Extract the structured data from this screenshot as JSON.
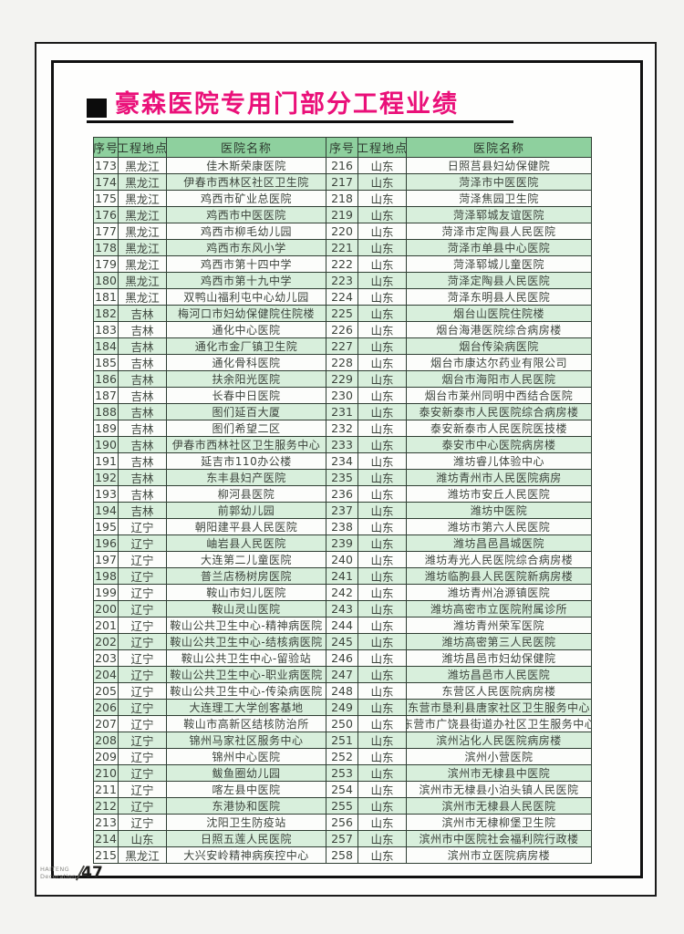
{
  "page": {
    "title": "豪森医院专用门部分工程业绩",
    "page_number": "47",
    "brand_line1": "HAITENG",
    "brand_line2": "Decoration"
  },
  "colors": {
    "title": "#ea1079",
    "header_bg": "#8ed09e",
    "band_green": "#d8efdc",
    "band_white": "#fcfdfb",
    "grid_line": "#2f3e33"
  },
  "table": {
    "headers": [
      "序号",
      "工程地点",
      "医院名称",
      "序号",
      "工程地点",
      "医院名称"
    ],
    "left_rows": [
      {
        "no": "173",
        "loc": "黑龙江",
        "name": "佳木斯荣康医院"
      },
      {
        "no": "174",
        "loc": "黑龙江",
        "name": "伊春市西林区社区卫生院"
      },
      {
        "no": "175",
        "loc": "黑龙江",
        "name": "鸡西市矿业总医院"
      },
      {
        "no": "176",
        "loc": "黑龙江",
        "name": "鸡西市中医医院"
      },
      {
        "no": "177",
        "loc": "黑龙江",
        "name": "鸡西市柳毛幼儿园"
      },
      {
        "no": "178",
        "loc": "黑龙江",
        "name": "鸡西市东风小学"
      },
      {
        "no": "179",
        "loc": "黑龙江",
        "name": "鸡西市第十四中学"
      },
      {
        "no": "180",
        "loc": "黑龙江",
        "name": "鸡西市第十九中学"
      },
      {
        "no": "181",
        "loc": "黑龙江",
        "name": "双鸭山福利屯中心幼儿园"
      },
      {
        "no": "182",
        "loc": "吉林",
        "name": "梅河口市妇幼保健院住院楼"
      },
      {
        "no": "183",
        "loc": "吉林",
        "name": "通化中心医院"
      },
      {
        "no": "184",
        "loc": "吉林",
        "name": "通化市金厂镇卫生院"
      },
      {
        "no": "185",
        "loc": "吉林",
        "name": "通化骨科医院"
      },
      {
        "no": "186",
        "loc": "吉林",
        "name": "扶余阳光医院"
      },
      {
        "no": "187",
        "loc": "吉林",
        "name": "长春中日医院"
      },
      {
        "no": "188",
        "loc": "吉林",
        "name": "图们延百大厦"
      },
      {
        "no": "189",
        "loc": "吉林",
        "name": "图们希望二区"
      },
      {
        "no": "190",
        "loc": "吉林",
        "name": "伊春市西林社区卫生服务中心"
      },
      {
        "no": "191",
        "loc": "吉林",
        "name": "延吉市110办公楼"
      },
      {
        "no": "192",
        "loc": "吉林",
        "name": "东丰县妇产医院"
      },
      {
        "no": "193",
        "loc": "吉林",
        "name": "柳河县医院"
      },
      {
        "no": "194",
        "loc": "吉林",
        "name": "前郭幼儿园"
      },
      {
        "no": "195",
        "loc": "辽宁",
        "name": "朝阳建平县人民医院"
      },
      {
        "no": "196",
        "loc": "辽宁",
        "name": "岫岩县人民医院"
      },
      {
        "no": "197",
        "loc": "辽宁",
        "name": "大连第二儿童医院"
      },
      {
        "no": "198",
        "loc": "辽宁",
        "name": "普兰店杨树房医院"
      },
      {
        "no": "199",
        "loc": "辽宁",
        "name": "鞍山市妇儿医院"
      },
      {
        "no": "200",
        "loc": "辽宁",
        "name": "鞍山灵山医院"
      },
      {
        "no": "201",
        "loc": "辽宁",
        "name": "鞍山公共卫生中心-精神病医院"
      },
      {
        "no": "202",
        "loc": "辽宁",
        "name": "鞍山公共卫生中心-结核病医院"
      },
      {
        "no": "203",
        "loc": "辽宁",
        "name": "鞍山公共卫生中心-留验站"
      },
      {
        "no": "204",
        "loc": "辽宁",
        "name": "鞍山公共卫生中心-职业病医院"
      },
      {
        "no": "205",
        "loc": "辽宁",
        "name": "鞍山公共卫生中心-传染病医院"
      },
      {
        "no": "206",
        "loc": "辽宁",
        "name": "大连理工大学创客基地"
      },
      {
        "no": "207",
        "loc": "辽宁",
        "name": "鞍山市高新区结核防治所"
      },
      {
        "no": "208",
        "loc": "辽宁",
        "name": "锦州马家社区服务中心"
      },
      {
        "no": "209",
        "loc": "辽宁",
        "name": "锦州中心医院"
      },
      {
        "no": "210",
        "loc": "辽宁",
        "name": "鲅鱼圈幼儿园"
      },
      {
        "no": "211",
        "loc": "辽宁",
        "name": "喀左县中医院"
      },
      {
        "no": "212",
        "loc": "辽宁",
        "name": "东港协和医院"
      },
      {
        "no": "213",
        "loc": "辽宁",
        "name": "沈阳卫生防疫站"
      },
      {
        "no": "214",
        "loc": "山东",
        "name": "日照五莲人民医院"
      },
      {
        "no": "215",
        "loc": "黑龙江",
        "name": "大兴安岭精神病疾控中心"
      }
    ],
    "right_rows": [
      {
        "no": "216",
        "loc": "山东",
        "name": "日照莒县妇幼保健院"
      },
      {
        "no": "217",
        "loc": "山东",
        "name": "菏泽市中医医院"
      },
      {
        "no": "218",
        "loc": "山东",
        "name": "菏泽焦园卫生院"
      },
      {
        "no": "219",
        "loc": "山东",
        "name": "菏泽郓城友谊医院"
      },
      {
        "no": "220",
        "loc": "山东",
        "name": "菏泽市定陶县人民医院"
      },
      {
        "no": "221",
        "loc": "山东",
        "name": "菏泽市单县中心医院"
      },
      {
        "no": "222",
        "loc": "山东",
        "name": "菏泽郓城儿童医院"
      },
      {
        "no": "223",
        "loc": "山东",
        "name": "菏泽定陶县人民医院"
      },
      {
        "no": "224",
        "loc": "山东",
        "name": "菏泽东明县人民医院"
      },
      {
        "no": "225",
        "loc": "山东",
        "name": "烟台山医院住院楼"
      },
      {
        "no": "226",
        "loc": "山东",
        "name": "烟台海港医院综合病房楼"
      },
      {
        "no": "227",
        "loc": "山东",
        "name": "烟台传染病医院"
      },
      {
        "no": "228",
        "loc": "山东",
        "name": "烟台市康达尔药业有限公司"
      },
      {
        "no": "229",
        "loc": "山东",
        "name": "烟台市海阳市人民医院"
      },
      {
        "no": "230",
        "loc": "山东",
        "name": "烟台市莱州同明中西结合医院"
      },
      {
        "no": "231",
        "loc": "山东",
        "name": "泰安新泰市人民医院综合病房楼"
      },
      {
        "no": "232",
        "loc": "山东",
        "name": "泰安新泰市人民医院医技楼"
      },
      {
        "no": "233",
        "loc": "山东",
        "name": "泰安市中心医院病房楼"
      },
      {
        "no": "234",
        "loc": "山东",
        "name": "潍坊睿儿体验中心"
      },
      {
        "no": "235",
        "loc": "山东",
        "name": "潍坊青州市人民医院病房"
      },
      {
        "no": "236",
        "loc": "山东",
        "name": "潍坊市安丘人民医院"
      },
      {
        "no": "237",
        "loc": "山东",
        "name": "潍坊中医院"
      },
      {
        "no": "238",
        "loc": "山东",
        "name": "潍坊市第六人民医院"
      },
      {
        "no": "239",
        "loc": "山东",
        "name": "潍坊昌邑昌城医院"
      },
      {
        "no": "240",
        "loc": "山东",
        "name": "潍坊寿光人民医院综合病房楼"
      },
      {
        "no": "241",
        "loc": "山东",
        "name": "潍坊临朐县人民医院新病房楼"
      },
      {
        "no": "242",
        "loc": "山东",
        "name": "潍坊青州冶源镇医院"
      },
      {
        "no": "243",
        "loc": "山东",
        "name": "潍坊高密市立医院附属诊所"
      },
      {
        "no": "244",
        "loc": "山东",
        "name": "潍坊青州荣军医院"
      },
      {
        "no": "245",
        "loc": "山东",
        "name": "潍坊高密第三人民医院"
      },
      {
        "no": "246",
        "loc": "山东",
        "name": "潍坊昌邑市妇幼保健院"
      },
      {
        "no": "247",
        "loc": "山东",
        "name": "潍坊昌邑市人民医院"
      },
      {
        "no": "248",
        "loc": "山东",
        "name": "东营区人民医院病房楼"
      },
      {
        "no": "249",
        "loc": "山东",
        "name": "东营市垦利县唐家社区卫生服务中心"
      },
      {
        "no": "250",
        "loc": "山东",
        "name": "东营市广饶县街道办社区卫生服务中心"
      },
      {
        "no": "251",
        "loc": "山东",
        "name": "滨州沾化人民医院病房楼"
      },
      {
        "no": "252",
        "loc": "山东",
        "name": "滨州小营医院"
      },
      {
        "no": "253",
        "loc": "山东",
        "name": "滨州市无棣县中医院"
      },
      {
        "no": "254",
        "loc": "山东",
        "name": "滨州市无棣县小泊头镇人民医院"
      },
      {
        "no": "255",
        "loc": "山东",
        "name": "滨州市无棣县人民医院"
      },
      {
        "no": "256",
        "loc": "山东",
        "name": "滨州市无棣柳堡卫生院"
      },
      {
        "no": "257",
        "loc": "山东",
        "name": "滨州市中医院社会福利院行政楼"
      },
      {
        "no": "258",
        "loc": "山东",
        "name": "滨州市立医院病房楼"
      }
    ]
  }
}
